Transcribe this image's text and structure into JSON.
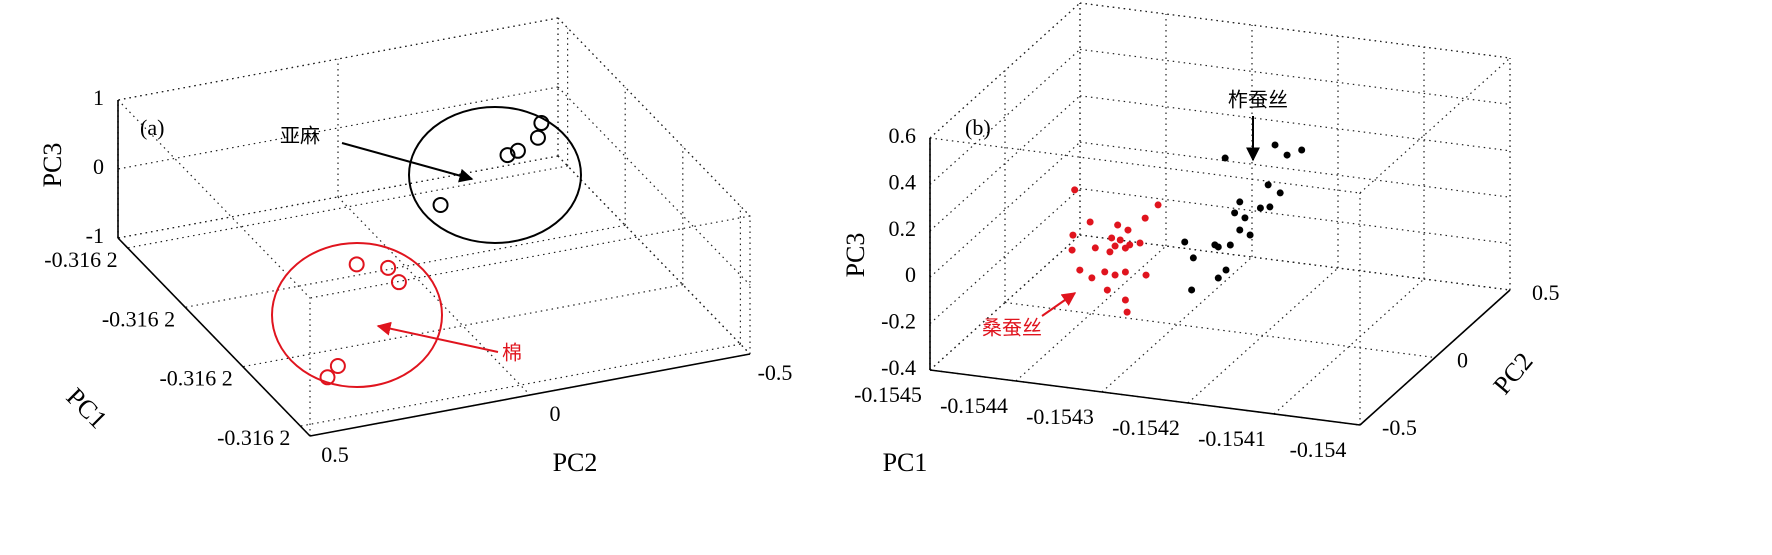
{
  "chart_data": [
    {
      "type": "scatter3d",
      "label": "(a)",
      "xlabel": "PC1",
      "ylabel": "PC2",
      "zlabel": "PC3",
      "grid": true,
      "xlim": [
        -0.31625,
        -0.31615
      ],
      "xticks": [
        {
          "value": -0.316245,
          "label": "-0.316 2"
        },
        {
          "value": -0.316215,
          "label": "-0.316 2"
        },
        {
          "value": -0.316185,
          "label": "-0.316 2"
        },
        {
          "value": -0.316155,
          "label": "-0.316 2"
        }
      ],
      "ylim": [
        -0.5,
        0.5
      ],
      "yticks": [
        -0.5,
        0,
        0.5
      ],
      "zlim": [
        -1,
        1
      ],
      "zticks": [
        -1,
        0,
        1
      ],
      "series": [
        {
          "name": "亚麻",
          "color": "#000000",
          "marker": "open-circle",
          "x": [
            -0.31623,
            -0.316224,
            -0.31622,
            -0.316219,
            -0.316203
          ],
          "y": [
            -0.375,
            -0.341,
            -0.278,
            -0.25,
            -0.028
          ],
          "z": [
            0.2,
            0.2,
            0.2,
            0.2,
            0.2
          ]
        },
        {
          "name": "棉",
          "color": "#e0141e",
          "marker": "open-circle",
          "x": [
            -0.316202,
            -0.316198,
            -0.316191,
            -0.31616,
            -0.316156
          ],
          "y": [
            0.167,
            0.113,
            0.119,
            0.393,
            0.434
          ],
          "z": [
            -0.4,
            -0.4,
            -0.4,
            -0.4,
            -0.4
          ]
        }
      ]
    },
    {
      "type": "scatter3d",
      "label": "(b)",
      "xlabel": "PC1",
      "ylabel": "PC2",
      "zlabel": "PC3",
      "grid": true,
      "xlim": [
        -0.1545,
        -0.154
      ],
      "xticks": [
        -0.1545,
        -0.1544,
        -0.1543,
        -0.1542,
        -0.1541,
        -0.154
      ],
      "ylim": [
        -0.5,
        0.5
      ],
      "yticks": [
        -0.5,
        0,
        0.5
      ],
      "zlim": [
        -0.4,
        0.6
      ],
      "zticks": [
        -0.4,
        -0.2,
        0,
        0.2,
        0.4,
        0.6
      ],
      "series": [
        {
          "name": "柞蚕丝",
          "color": "#000000",
          "marker": "dot",
          "x": [
            -0.154186,
            -0.154155,
            -0.154172,
            -0.154244,
            -0.154194,
            -0.15418,
            -0.154227,
            -0.154203,
            -0.154192,
            -0.154233,
            -0.154221,
            -0.154227,
            -0.154215,
            -0.154238,
            -0.154291,
            -0.154256,
            -0.154281,
            -0.154252,
            -0.154243,
            -0.154252,
            -0.154283
          ],
          "y": [
            0,
            0,
            0,
            0,
            0,
            0,
            0,
            0,
            0,
            0,
            0,
            0,
            0,
            0,
            0,
            0,
            0,
            0,
            0,
            0,
            0
          ],
          "z": [
            0.428,
            0.421,
            0.391,
            0.344,
            0.252,
            0.224,
            0.163,
            0.148,
            0.158,
            0.113,
            0.097,
            0.042,
            0.026,
            -0.028,
            -0.04,
            -0.036,
            -0.104,
            -0.043,
            -0.138,
            -0.177,
            -0.243
          ]
        },
        {
          "name": "桑蚕丝",
          "color": "#e0141e",
          "marker": "dot",
          "x": [
            -0.154419,
            -0.154401,
            -0.154369,
            -0.154357,
            -0.154322,
            -0.154337,
            -0.154421,
            -0.154376,
            -0.154366,
            -0.154355,
            -0.154343,
            -0.154422,
            -0.154395,
            -0.154378,
            -0.154372,
            -0.15436,
            -0.154413,
            -0.154384,
            -0.154399,
            -0.154372,
            -0.15436,
            -0.154336,
            -0.154381,
            -0.15436,
            -0.154358
          ],
          "y": [
            0,
            0,
            0,
            0,
            0,
            0,
            0,
            0,
            0,
            0,
            0,
            0,
            0,
            0,
            0,
            0,
            0,
            0,
            0,
            0,
            0,
            0,
            0,
            0,
            0
          ],
          "z": [
            0.124,
            -0.006,
            -0.004,
            -0.02,
            0.105,
            0.041,
            -0.072,
            -0.063,
            -0.067,
            -0.083,
            -0.069,
            -0.137,
            -0.115,
            -0.124,
            -0.096,
            -0.099,
            -0.219,
            -0.213,
            -0.246,
            -0.221,
            -0.202,
            -0.204,
            -0.29,
            -0.323,
            -0.374
          ]
        }
      ]
    }
  ]
}
